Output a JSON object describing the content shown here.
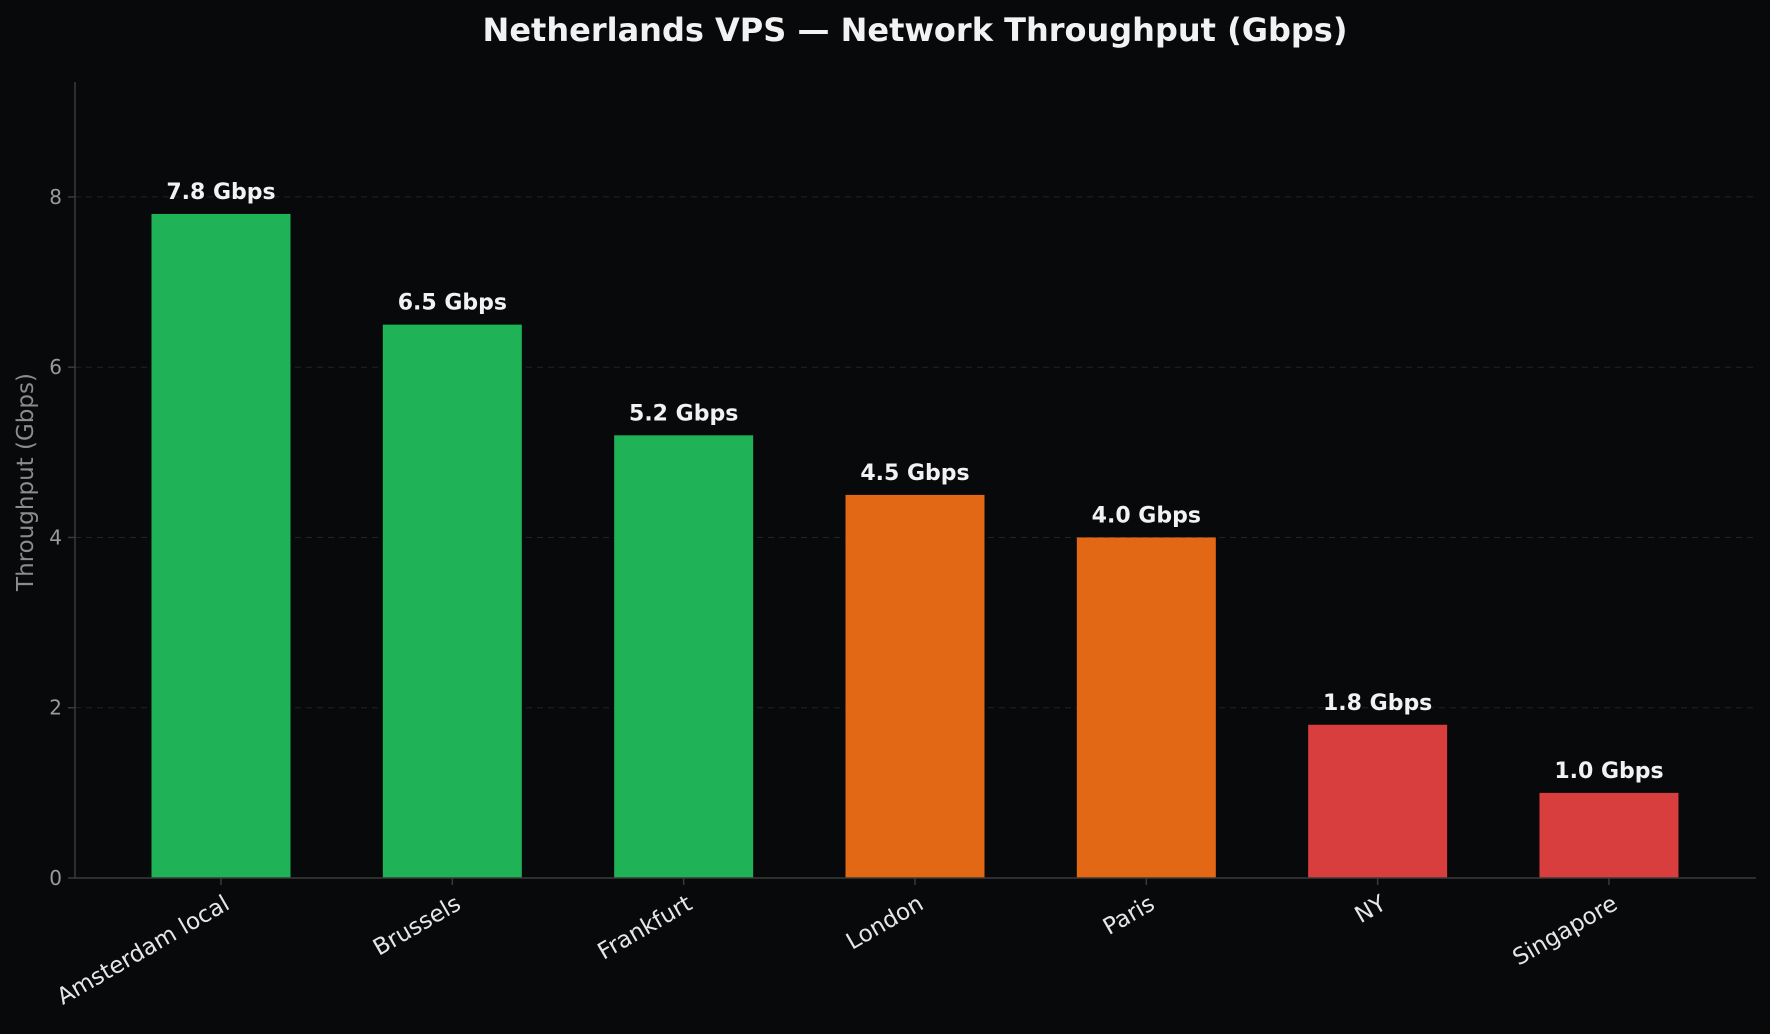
{
  "chart_data": {
    "type": "bar",
    "title": "Netherlands VPS — Network Throughput (Gbps)",
    "xlabel": "",
    "ylabel": "Throughput (Gbps)",
    "ylim": [
      0,
      9.35
    ],
    "yticks": [
      0,
      2,
      4,
      6,
      8
    ],
    "grid": {
      "y": true,
      "x": false
    },
    "categories": [
      "Amsterdam local",
      "Brussels",
      "Frankfurt",
      "London",
      "Paris",
      "NY",
      "Singapore"
    ],
    "values": [
      7.8,
      6.5,
      5.2,
      4.5,
      4.0,
      1.8,
      1.0
    ],
    "value_labels": [
      "7.8 Gbps",
      "6.5 Gbps",
      "5.2 Gbps",
      "4.5 Gbps",
      "4.0 Gbps",
      "1.8 Gbps",
      "1.0 Gbps"
    ],
    "bar_colors": [
      "#1fb257",
      "#1fb257",
      "#1fb257",
      "#e26815",
      "#e26815",
      "#d83e3e",
      "#d83e3e"
    ]
  },
  "colors": {
    "background": "#08090b",
    "axis": "#3a3a3a",
    "grid": "#232323"
  }
}
